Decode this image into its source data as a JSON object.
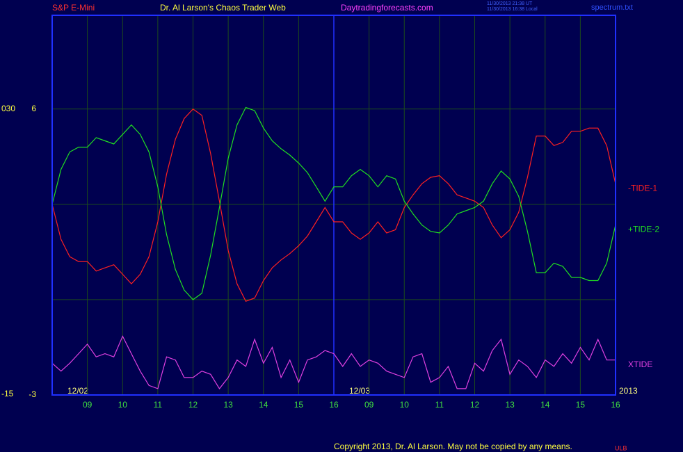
{
  "header": {
    "instrument": "S&P E-Mini",
    "site_name": "Dr. Al Larson's Chaos Trader Web",
    "site_url": "Daytradingforecasts.com",
    "timestamps": [
      "11/30/2013 21:38 UT",
      "11/30/2013 16:38 Local"
    ],
    "file": "spectrum.txt"
  },
  "footer": {
    "copyright": "Copyright 2013, Dr. Al Larson. May not be copied by any means.",
    "mark": "ULB"
  },
  "chart_data": {
    "type": "line",
    "outer_scale": [
      "030",
      "-15"
    ],
    "dates": [
      "12/02",
      "12/03"
    ],
    "year": "2013",
    "day_separators": [
      8
    ],
    "xlim": [
      0,
      16
    ],
    "xticks": [
      {
        "value": 1,
        "label": "09"
      },
      {
        "value": 2,
        "label": "10"
      },
      {
        "value": 3,
        "label": "11"
      },
      {
        "value": 4,
        "label": "12"
      },
      {
        "value": 5,
        "label": "13"
      },
      {
        "value": 6,
        "label": "14"
      },
      {
        "value": 7,
        "label": "15"
      },
      {
        "value": 8,
        "label": "16"
      },
      {
        "value": 9,
        "label": "09"
      },
      {
        "value": 10,
        "label": "10"
      },
      {
        "value": 11,
        "label": "11"
      },
      {
        "value": 12,
        "label": "12"
      },
      {
        "value": 13,
        "label": "13"
      },
      {
        "value": 14,
        "label": "14"
      },
      {
        "value": 15,
        "label": "15"
      },
      {
        "value": 16,
        "label": "16"
      }
    ],
    "ylim": [
      -3,
      8.95
    ],
    "yticks": [
      -3,
      6
    ],
    "ygrid": [
      0,
      3,
      6
    ],
    "grid": true,
    "x": [
      0,
      0.25,
      0.5,
      0.75,
      1,
      1.25,
      1.5,
      1.75,
      2,
      2.25,
      2.5,
      2.75,
      3,
      3.25,
      3.5,
      3.75,
      4,
      4.25,
      4.5,
      4.75,
      5,
      5.25,
      5.5,
      5.75,
      6,
      6.25,
      6.5,
      6.75,
      7,
      7.25,
      7.5,
      7.75,
      8,
      8.25,
      8.5,
      8.75,
      9,
      9.25,
      9.5,
      9.75,
      10,
      10.25,
      10.5,
      10.75,
      11,
      11.25,
      11.5,
      11.75,
      12,
      12.25,
      12.5,
      12.75,
      13,
      13.25,
      13.5,
      13.75,
      14,
      14.25,
      14.5,
      14.75,
      15,
      15.25,
      15.5,
      15.75,
      16
    ],
    "series": [
      {
        "name": "-TIDE-1",
        "color": "#ff2020",
        "values": [
          3.0,
          1.9,
          1.35,
          1.2,
          1.2,
          0.9,
          1.0,
          1.1,
          0.8,
          0.5,
          0.8,
          1.35,
          2.45,
          3.95,
          5.05,
          5.7,
          6.0,
          5.8,
          4.6,
          3.1,
          1.55,
          0.5,
          -0.05,
          0.05,
          0.6,
          1.0,
          1.25,
          1.45,
          1.7,
          2.0,
          2.45,
          2.9,
          2.45,
          2.45,
          2.1,
          1.9,
          2.1,
          2.45,
          2.1,
          2.2,
          2.9,
          3.3,
          3.65,
          3.85,
          3.9,
          3.65,
          3.3,
          3.2,
          3.1,
          2.9,
          2.35,
          1.95,
          2.2,
          2.75,
          3.85,
          5.15,
          5.15,
          4.85,
          4.95,
          5.3,
          5.3,
          5.4,
          5.4,
          4.85,
          3.65
        ]
      },
      {
        "name": "+TIDE-2",
        "color": "#20e020",
        "values": [
          3.0,
          4.1,
          4.65,
          4.8,
          4.8,
          5.1,
          5.0,
          4.9,
          5.2,
          5.5,
          5.2,
          4.65,
          3.55,
          2.05,
          0.95,
          0.3,
          0.0,
          0.2,
          1.4,
          2.9,
          4.45,
          5.5,
          6.05,
          5.95,
          5.4,
          5.0,
          4.75,
          4.55,
          4.3,
          4.0,
          3.55,
          3.1,
          3.55,
          3.55,
          3.9,
          4.1,
          3.9,
          3.55,
          3.9,
          3.8,
          3.1,
          2.7,
          2.35,
          2.15,
          2.1,
          2.35,
          2.7,
          2.8,
          2.9,
          3.1,
          3.65,
          4.05,
          3.8,
          3.25,
          2.15,
          0.85,
          0.85,
          1.15,
          1.05,
          0.7,
          0.7,
          0.6,
          0.6,
          1.15,
          2.35
        ]
      },
      {
        "name": "XTIDE",
        "color": "#e040e0",
        "values": [
          -2.0,
          -2.25,
          -2.0,
          -1.7,
          -1.4,
          -1.8,
          -1.7,
          -1.8,
          -1.15,
          -1.7,
          -2.25,
          -2.7,
          -2.8,
          -1.8,
          -1.9,
          -2.45,
          -2.45,
          -2.25,
          -2.35,
          -2.8,
          -2.45,
          -1.9,
          -2.1,
          -1.25,
          -2.0,
          -1.5,
          -2.45,
          -1.9,
          -2.6,
          -1.9,
          -1.8,
          -1.6,
          -1.7,
          -2.1,
          -1.7,
          -2.1,
          -1.9,
          -2.0,
          -2.25,
          -2.35,
          -2.45,
          -1.8,
          -1.7,
          -2.6,
          -2.45,
          -2.1,
          -2.8,
          -2.8,
          -2.0,
          -2.25,
          -1.6,
          -1.25,
          -2.35,
          -1.9,
          -2.1,
          -2.45,
          -1.9,
          -2.1,
          -1.7,
          -2.0,
          -1.5,
          -1.9,
          -1.25,
          -1.9,
          -1.9
        ]
      }
    ]
  }
}
